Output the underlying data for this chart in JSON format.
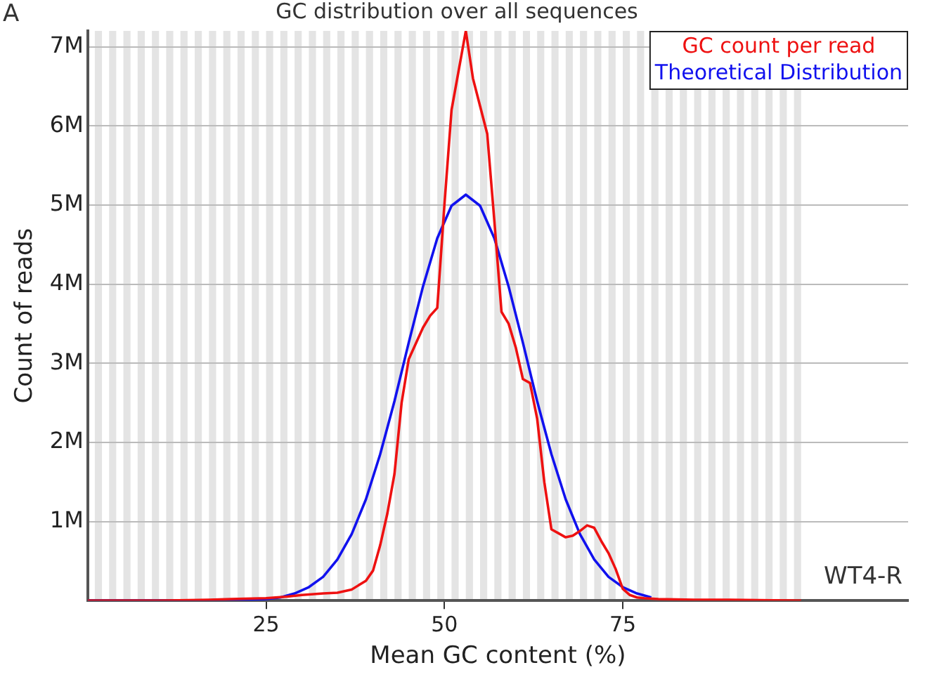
{
  "chart_data": {
    "type": "line",
    "title": "GC distribution over all sequences",
    "xlabel": "Mean GC content (%)",
    "ylabel": "Count of reads",
    "xlim": [
      0,
      115
    ],
    "xticks": [
      25,
      50,
      75
    ],
    "ylim": [
      0,
      7200000
    ],
    "yticks": [
      {
        "value": 1000000,
        "label": "1M"
      },
      {
        "value": 2000000,
        "label": "2M"
      },
      {
        "value": 3000000,
        "label": "3M"
      },
      {
        "value": 4000000,
        "label": "4M"
      },
      {
        "value": 5000000,
        "label": "5M"
      },
      {
        "value": 6000000,
        "label": "6M"
      },
      {
        "value": 7000000,
        "label": "7M"
      }
    ],
    "grid": "y",
    "legend": "top right",
    "marker": "none",
    "line_style": "solid",
    "annotations": [
      "A",
      "WT4-R"
    ],
    "bands": [
      {
        "axis": "x",
        "from": 1,
        "to": 2,
        "color": "#e4e4e4"
      },
      {
        "axis": "x",
        "from": 3,
        "to": 4,
        "color": "#e4e4e4"
      },
      {
        "axis": "x",
        "from": 5,
        "to": 6,
        "color": "#e4e4e4"
      },
      {
        "axis": "x",
        "from": 7,
        "to": 8,
        "color": "#e4e4e4"
      },
      {
        "axis": "x",
        "from": 9,
        "to": 10,
        "color": "#e4e4e4"
      },
      {
        "axis": "x",
        "from": 11,
        "to": 12,
        "color": "#e4e4e4"
      },
      {
        "axis": "x",
        "from": 13,
        "to": 14,
        "color": "#e4e4e4"
      },
      {
        "axis": "x",
        "from": 15,
        "to": 16,
        "color": "#e4e4e4"
      },
      {
        "axis": "x",
        "from": 17,
        "to": 18,
        "color": "#e4e4e4"
      },
      {
        "axis": "x",
        "from": 19,
        "to": 20,
        "color": "#e4e4e4"
      },
      {
        "axis": "x",
        "from": 21,
        "to": 22,
        "color": "#e4e4e4"
      },
      {
        "axis": "x",
        "from": 23,
        "to": 24,
        "color": "#e4e4e4"
      },
      {
        "axis": "x",
        "from": 25,
        "to": 26,
        "color": "#e4e4e4"
      },
      {
        "axis": "x",
        "from": 27,
        "to": 28,
        "color": "#e4e4e4"
      },
      {
        "axis": "x",
        "from": 29,
        "to": 30,
        "color": "#e4e4e4"
      },
      {
        "axis": "x",
        "from": 31,
        "to": 32,
        "color": "#e4e4e4"
      },
      {
        "axis": "x",
        "from": 33,
        "to": 34,
        "color": "#e4e4e4"
      },
      {
        "axis": "x",
        "from": 35,
        "to": 36,
        "color": "#e4e4e4"
      },
      {
        "axis": "x",
        "from": 37,
        "to": 38,
        "color": "#e4e4e4"
      },
      {
        "axis": "x",
        "from": 39,
        "to": 40,
        "color": "#e4e4e4"
      },
      {
        "axis": "x",
        "from": 41,
        "to": 42,
        "color": "#e4e4e4"
      },
      {
        "axis": "x",
        "from": 43,
        "to": 44,
        "color": "#e4e4e4"
      },
      {
        "axis": "x",
        "from": 45,
        "to": 46,
        "color": "#e4e4e4"
      },
      {
        "axis": "x",
        "from": 47,
        "to": 48,
        "color": "#e4e4e4"
      },
      {
        "axis": "x",
        "from": 49,
        "to": 50,
        "color": "#e4e4e4"
      },
      {
        "axis": "x",
        "from": 51,
        "to": 52,
        "color": "#e4e4e4"
      },
      {
        "axis": "x",
        "from": 53,
        "to": 54,
        "color": "#e4e4e4"
      },
      {
        "axis": "x",
        "from": 55,
        "to": 56,
        "color": "#e4e4e4"
      },
      {
        "axis": "x",
        "from": 57,
        "to": 58,
        "color": "#e4e4e4"
      },
      {
        "axis": "x",
        "from": 59,
        "to": 60,
        "color": "#e4e4e4"
      },
      {
        "axis": "x",
        "from": 61,
        "to": 62,
        "color": "#e4e4e4"
      },
      {
        "axis": "x",
        "from": 63,
        "to": 64,
        "color": "#e4e4e4"
      },
      {
        "axis": "x",
        "from": 65,
        "to": 66,
        "color": "#e4e4e4"
      },
      {
        "axis": "x",
        "from": 67,
        "to": 68,
        "color": "#e4e4e4"
      },
      {
        "axis": "x",
        "from": 69,
        "to": 70,
        "color": "#e4e4e4"
      },
      {
        "axis": "x",
        "from": 71,
        "to": 72,
        "color": "#e4e4e4"
      },
      {
        "axis": "x",
        "from": 73,
        "to": 74,
        "color": "#e4e4e4"
      },
      {
        "axis": "x",
        "from": 75,
        "to": 76,
        "color": "#e4e4e4"
      },
      {
        "axis": "x",
        "from": 77,
        "to": 78,
        "color": "#e4e4e4"
      },
      {
        "axis": "x",
        "from": 79,
        "to": 80,
        "color": "#e4e4e4"
      },
      {
        "axis": "x",
        "from": 81,
        "to": 82,
        "color": "#e4e4e4"
      },
      {
        "axis": "x",
        "from": 83,
        "to": 84,
        "color": "#e4e4e4"
      },
      {
        "axis": "x",
        "from": 85,
        "to": 86,
        "color": "#e4e4e4"
      },
      {
        "axis": "x",
        "from": 87,
        "to": 88,
        "color": "#e4e4e4"
      },
      {
        "axis": "x",
        "from": 89,
        "to": 90,
        "color": "#e4e4e4"
      },
      {
        "axis": "x",
        "from": 91,
        "to": 92,
        "color": "#e4e4e4"
      },
      {
        "axis": "x",
        "from": 93,
        "to": 94,
        "color": "#e4e4e4"
      },
      {
        "axis": "x",
        "from": 95,
        "to": 96,
        "color": "#e4e4e4"
      },
      {
        "axis": "x",
        "from": 97,
        "to": 98,
        "color": "#e4e4e4"
      },
      {
        "axis": "x",
        "from": 99,
        "to": 100,
        "color": "#e4e4e4"
      }
    ],
    "series": [
      {
        "name": "GC count per read",
        "color": "#ee1111",
        "x": [
          0,
          10,
          17,
          20,
          25,
          28,
          30,
          33,
          35,
          37,
          39,
          40,
          41,
          42,
          43,
          44,
          45,
          46,
          47,
          48,
          49,
          50,
          51,
          52,
          53,
          54,
          55,
          56,
          57,
          58,
          59,
          60,
          61,
          62,
          63,
          64,
          65,
          66,
          67,
          68,
          69,
          70,
          71,
          72,
          73,
          74,
          75,
          76,
          77,
          78,
          80,
          85,
          90,
          100
        ],
        "values": [
          0,
          0,
          10000,
          20000,
          30000,
          50000,
          70000,
          90000,
          100000,
          140000,
          250000,
          380000,
          700000,
          1100000,
          1600000,
          2500000,
          3050000,
          3250000,
          3450000,
          3600000,
          3700000,
          5000000,
          6200000,
          6700000,
          7200000,
          6600000,
          6250000,
          5900000,
          4800000,
          3650000,
          3500000,
          3200000,
          2800000,
          2750000,
          2300000,
          1500000,
          900000,
          850000,
          800000,
          820000,
          880000,
          950000,
          920000,
          750000,
          600000,
          400000,
          150000,
          70000,
          40000,
          30000,
          20000,
          10000,
          10000,
          0
        ]
      },
      {
        "name": "Theoretical Distribution",
        "color": "#1111ee",
        "x": [
          0,
          17,
          23,
          25,
          27,
          29,
          31,
          33,
          35,
          37,
          39,
          41,
          43,
          45,
          47,
          49,
          51,
          53,
          55,
          57,
          59,
          61,
          63,
          65,
          67,
          69,
          71,
          73,
          75,
          77,
          79
        ],
        "values": [
          0,
          0,
          10000,
          20000,
          40000,
          90000,
          170000,
          300000,
          520000,
          840000,
          1280000,
          1850000,
          2520000,
          3260000,
          3970000,
          4580000,
          4990000,
          5130000,
          4990000,
          4580000,
          3970000,
          3260000,
          2520000,
          1850000,
          1280000,
          840000,
          520000,
          300000,
          170000,
          90000,
          40000
        ]
      }
    ]
  }
}
